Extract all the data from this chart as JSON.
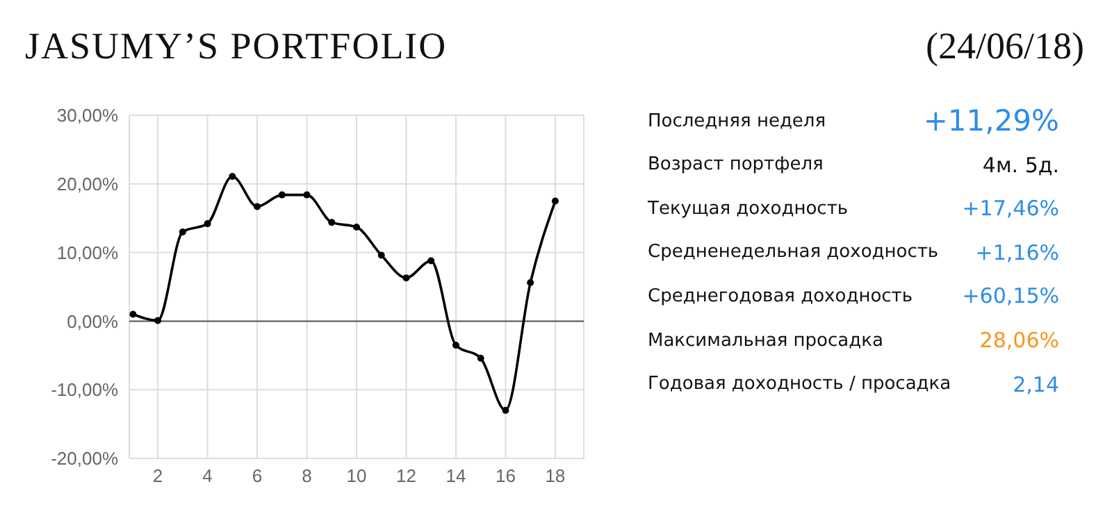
{
  "chart_data": [
    {
      "type": "line",
      "title": "JASUMY’S PORTFOLIO",
      "x": [
        1,
        2,
        3,
        4,
        5,
        6,
        7,
        8,
        9,
        10,
        11,
        12,
        13,
        14,
        15,
        16,
        17,
        18
      ],
      "series": [
        {
          "color": "#000000",
          "values": [
            1.0,
            0.1,
            13.0,
            14.2,
            21.1,
            16.7,
            18.4,
            18.4,
            14.4,
            13.7,
            9.6,
            6.3,
            8.8,
            -3.5,
            -5.4,
            -13.0,
            5.6,
            17.5
          ]
        }
      ],
      "xlim": [
        0.85,
        19.15
      ],
      "xticks": [
        2,
        4,
        6,
        8,
        10,
        12,
        14,
        16,
        18
      ],
      "ylim": [
        -20,
        30
      ],
      "yticks": [
        {
          "value": -20,
          "label": "-20,00%"
        },
        {
          "value": -10,
          "label": "-10,00%"
        },
        {
          "value": 0,
          "label": "0,00%"
        },
        {
          "value": 10,
          "label": "10,00%"
        },
        {
          "value": 20,
          "label": "20,00%"
        },
        {
          "value": 30,
          "label": "30,00%"
        }
      ],
      "ref_lines": [
        {
          "axis": "y",
          "value": 0,
          "color": "#555555"
        }
      ],
      "grid": true,
      "legend": false,
      "marker": "circle",
      "line_style": "solid"
    },
    {
      "type": "other",
      "title": "(24/06/18)",
      "categories": [
        "Последняя неделя",
        "Возраст портфеля",
        "Текущая доходность",
        "Средненедельная доходность",
        "Среднегодовая доходность",
        "Максимальная просадка",
        "Годовая доходность / просадка"
      ],
      "value_labels": [
        "+11,29%",
        "4м. 5д.",
        "+17,46%",
        "+1,16%",
        "+60,15%",
        "28,06%",
        "2,14"
      ],
      "colors": [
        "#2b8de8",
        "#111111",
        "#2b8de8",
        "#2b8de8",
        "#2b8de8",
        "#f7941d",
        "#2b8de8"
      ]
    }
  ]
}
